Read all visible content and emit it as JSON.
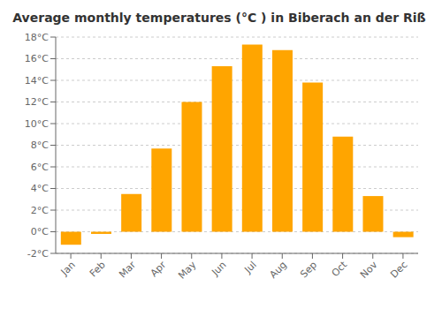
{
  "chart_data": {
    "type": "bar",
    "title": "Average monthly temperatures (°C ) in Biberach an der Riß",
    "categories": [
      "Jan",
      "Feb",
      "Mar",
      "Apr",
      "May",
      "Jun",
      "Jul",
      "Aug",
      "Sep",
      "Oct",
      "Nov",
      "Dec"
    ],
    "values": [
      -1.2,
      -0.2,
      3.5,
      7.7,
      12.0,
      15.3,
      17.3,
      16.8,
      13.8,
      8.8,
      3.3,
      -0.5
    ],
    "color": "#FFA500",
    "ylim": [
      -2,
      18
    ],
    "yticks": [
      {
        "value": -2,
        "label": "-2°C"
      },
      {
        "value": 0,
        "label": "0°C"
      },
      {
        "value": 2,
        "label": "2°C"
      },
      {
        "value": 4,
        "label": "4°C"
      },
      {
        "value": 6,
        "label": "6°C"
      },
      {
        "value": 8,
        "label": "8°C"
      },
      {
        "value": 10,
        "label": "10°C"
      },
      {
        "value": 12,
        "label": "12°C"
      },
      {
        "value": 14,
        "label": "14°C"
      },
      {
        "value": 16,
        "label": "16°C"
      },
      {
        "value": 18,
        "label": "18°C"
      }
    ],
    "grid": true
  }
}
